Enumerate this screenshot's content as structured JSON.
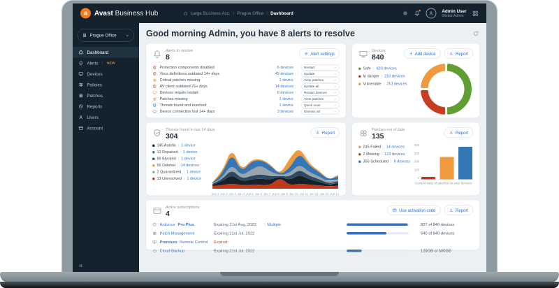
{
  "topbar": {
    "brand_bold": "Avast",
    "brand_rest": " Business Hub",
    "breadcrumb": [
      "Large Business Acc.",
      "Prague Office",
      "Dashboard"
    ],
    "user_name": "Admin User",
    "user_role": "Global Admin"
  },
  "sidebar": {
    "site_selector": "Prague Office",
    "items": [
      {
        "label": "Dashboard",
        "icon": "home",
        "active": true
      },
      {
        "label": "Alerts",
        "icon": "bell",
        "badge": "NEW"
      },
      {
        "label": "Devices",
        "icon": "monitor"
      },
      {
        "label": "Policies",
        "icon": "sliders"
      },
      {
        "label": "Patches",
        "icon": "clover"
      },
      {
        "label": "Reports",
        "icon": "clock"
      },
      {
        "label": "Users",
        "icon": "user"
      },
      {
        "label": "Account",
        "icon": "idcard"
      }
    ],
    "collapse_glyph": "«"
  },
  "main": {
    "greeting": "Good morning Admin, you have 8 alerts to resolve",
    "alerts_card": {
      "title": "Alerts to resolve",
      "count": "8",
      "settings_button": "Alert settings",
      "rows": [
        {
          "icon": "shield-alert",
          "color": "#c63d1f",
          "label": "Protection components disabled",
          "devices": "6 devices",
          "action": "Restart"
        },
        {
          "icon": "shield-alert",
          "color": "#c63d1f",
          "label": "Virus definitions outdated 14+ days",
          "devices": "45 devices",
          "action": "Update"
        },
        {
          "icon": "clover",
          "color": "#ef9a3e",
          "label": "Critical patches missing",
          "devices": "1 device",
          "action": "View patches"
        },
        {
          "icon": "shield-alert",
          "color": "#c63d1f",
          "label": "AV client outdated 21+ days",
          "devices": "14 devices",
          "action": "Update all"
        },
        {
          "icon": "monitor",
          "color": "#ef9a3e",
          "label": "Devices require restart",
          "devices": "6 devices",
          "action": "Restart devices"
        },
        {
          "icon": "clover",
          "color": "#ef9a3e",
          "label": "Patches missing",
          "devices": "1 device",
          "action": "View patches"
        },
        {
          "icon": "shield-check",
          "color": "#3577b5",
          "label": "Threats found and resolved",
          "devices": "1 device",
          "action": "Quick scan"
        },
        {
          "icon": "monitor",
          "color": "#8a97a1",
          "label": "Device connection lost 14+ days",
          "devices": "3 devices",
          "action": "Dismiss all"
        }
      ]
    },
    "devices_card": {
      "title": "Devices",
      "count": "840",
      "add_button": "Add device",
      "report_button": "Report",
      "legend": [
        {
          "label": "Safe",
          "count": "420 devices",
          "color": "#5e9e33"
        },
        {
          "label": "In danger",
          "count": "210 devices",
          "color": "#c63d1f"
        },
        {
          "label": "Vulnerable",
          "count": "210 devices",
          "color": "#ef9a3e"
        }
      ]
    },
    "threats_card": {
      "title": "Threats found in last 14 days",
      "count": "304",
      "report_button": "Report",
      "legend": [
        {
          "value": "145",
          "label": "Autofix",
          "devices": "1 device",
          "color": "#16212b"
        },
        {
          "value": "12",
          "label": "Repaired",
          "devices": "1 device",
          "color": "#3577b5"
        },
        {
          "value": "89",
          "label": "Blocked",
          "devices": "1 device",
          "color": "#2e4a63"
        },
        {
          "value": "56",
          "label": "Deleted",
          "devices": "14 devices",
          "color": "#ef9a3e"
        },
        {
          "value": "2",
          "label": "Quarantined",
          "devices": "1 device",
          "color": "#9aa4ab"
        },
        {
          "value": "13",
          "label": "Unresolved",
          "devices": "1 device",
          "color": "#c63d1f"
        }
      ]
    },
    "patches_card": {
      "title": "Patches out of date",
      "count": "135",
      "report_button": "Report",
      "legend": [
        {
          "value": "245",
          "label": "Failed",
          "devices": "14 devices",
          "color": "#ef9a3e"
        },
        {
          "value": "2",
          "label": "Missing",
          "devices": "123 devices",
          "color": "#c63d1f"
        },
        {
          "value": "356",
          "label": "Scheduled",
          "devices": "6 devices",
          "color": "#3577b5"
        }
      ],
      "caption": "Current state of patches on your devices"
    },
    "subscriptions_card": {
      "title": "Active subscriptions",
      "count": "4",
      "activation_button": "Use activation code",
      "report_button": "Report",
      "rows": [
        {
          "icon": "shield",
          "name_parts": [
            {
              "t": "Antivirus ",
              "b": false
            },
            {
              "t": "Pro Plus",
              "b": true
            }
          ],
          "expiry": "Expiring 21st Aug, 2022",
          "expired": false,
          "extra": "Multiple",
          "progress": 98.5,
          "usage": "827 of 840 devices"
        },
        {
          "icon": "clover",
          "name_parts": [
            {
              "t": "Patch Management",
              "b": false
            }
          ],
          "expiry": "Expiring 21st Jul, 2022",
          "expired": false,
          "progress": 64.3,
          "usage": "540 of 840 devices"
        },
        {
          "icon": "remote",
          "name_parts": [
            {
              "t": "Premium ",
              "b": true
            },
            {
              "t": "Remote Control",
              "b": false
            }
          ],
          "expiry": "Expired",
          "expired": true
        },
        {
          "icon": "cloud",
          "name_parts": [
            {
              "t": "Cloud Backup",
              "b": false
            }
          ],
          "expiry": "Expiring 21st Jul, 2022",
          "expired": false,
          "progress": 24,
          "usage": "120GB of 500GB"
        }
      ]
    }
  },
  "chart_data": [
    {
      "type": "pie",
      "donut": true,
      "title": "Devices",
      "labels": [
        "Safe",
        "In danger",
        "Vulnerable"
      ],
      "values": [
        420,
        210,
        210
      ],
      "colors": [
        "#5e9e33",
        "#c63d1f",
        "#ef9a3e"
      ],
      "legend_position": "left"
    },
    {
      "type": "area",
      "stacked": true,
      "title": "Threats found in last 14 days",
      "x": [
        "Jun 1",
        "Jun 2",
        "Jun 3",
        "Jun 4",
        "Jun 5",
        "Jun 6",
        "Jun 7",
        "Jun 8",
        "Jun 9",
        "Jun 10",
        "Jun 11",
        "Jun 12",
        "Jun 13",
        "Jun 14"
      ],
      "series": [
        {
          "name": "Unresolved",
          "color": "#c0391b",
          "values": [
            6,
            8,
            12,
            8,
            9,
            9,
            8,
            26,
            7,
            12,
            9,
            8,
            5,
            7
          ]
        },
        {
          "name": "Autofix",
          "color": "#16212b",
          "values": [
            3,
            8,
            20,
            8,
            12,
            14,
            12,
            2,
            12,
            20,
            12,
            8,
            4,
            6
          ]
        },
        {
          "name": "Blocked",
          "color": "#2e4a63",
          "values": [
            2,
            5,
            12,
            6,
            8,
            10,
            8,
            1,
            8,
            12,
            8,
            6,
            3,
            4
          ]
        },
        {
          "name": "Quarantined",
          "color": "#9aa4ab",
          "values": [
            1,
            4,
            12,
            6,
            14,
            20,
            10,
            1,
            8,
            12,
            8,
            6,
            3,
            4
          ]
        },
        {
          "name": "Repaired",
          "color": "#3577b5",
          "values": [
            2,
            8,
            26,
            9,
            18,
            12,
            14,
            1,
            12,
            26,
            15,
            10,
            5,
            7
          ]
        },
        {
          "name": "Deleted",
          "color": "#ef9a3e",
          "values": [
            1,
            3,
            12,
            3,
            4,
            2,
            3,
            0,
            22,
            12,
            4,
            3,
            1,
            3
          ]
        }
      ],
      "grid": false,
      "legend_position": "left"
    },
    {
      "type": "bar",
      "title": "Patches out of date",
      "categories": [
        "Missing",
        "Failed",
        "Scheduled"
      ],
      "values": [
        2,
        245,
        356
      ],
      "colors": [
        "#c0391b",
        "#ef9a3e",
        "#3577b5"
      ],
      "ylim": [
        0,
        400
      ],
      "yticks": [
        400,
        300,
        200,
        100,
        0
      ],
      "xlabel": "Current state of patches on your devices"
    }
  ]
}
